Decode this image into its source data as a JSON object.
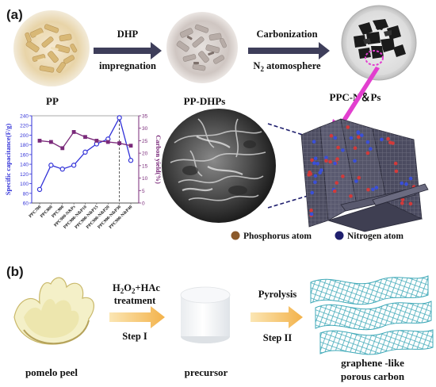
{
  "panel_a": {
    "label": "(a)",
    "step1": {
      "top": "DHP",
      "bottom": "impregnation"
    },
    "step2": {
      "top": "Carbonization",
      "bottom_prefix": "N",
      "bottom_sub": "2",
      "bottom_suffix": " atomosphere"
    },
    "img_labels": [
      "PP",
      "PP-DHPs",
      "PPC-N＆Ps"
    ],
    "legend": [
      {
        "label": "Phosphorus atom",
        "color": "#8b5a2b"
      },
      {
        "label": "Nitrogen atom",
        "color": "#1f1f6e"
      }
    ]
  },
  "chart_data": {
    "type": "line",
    "categories": [
      "PPC700",
      "PPC800",
      "PPC900",
      "PPC900-N&Ps",
      "PPC900-N&P10",
      "PPC900-N&P15",
      "PPC900-N&P20",
      "PPC900-N&P30",
      "PPC900-N&P40"
    ],
    "series": [
      {
        "name": "Specific capacitance(F/g)",
        "color": "#3232d8",
        "axis": "left",
        "values": [
          88,
          138,
          130,
          138,
          165,
          182,
          192,
          236,
          148
        ]
      },
      {
        "name": "Carbon yield(%)",
        "color": "#7a2a7a",
        "axis": "right",
        "values": [
          25,
          24.5,
          22,
          28.5,
          26.5,
          25,
          24.5,
          24,
          23
        ]
      }
    ],
    "ylabel": "Specific capacitance(F/g)",
    "y2label": "Carbon yield(%)",
    "ylim": [
      60,
      240
    ],
    "y2lim": [
      0,
      35
    ],
    "yticks": [
      "60",
      "80",
      "100",
      "120",
      "140",
      "160",
      "180",
      "200",
      "220",
      "240"
    ],
    "y2ticks": [
      "0",
      "5",
      "10",
      "15",
      "20",
      "25",
      "30",
      "35"
    ],
    "marker_index": 7
  },
  "panel_b": {
    "label": "(b)",
    "step1": {
      "top_prefix": "H",
      "sub1": "2",
      "mid": "O",
      "sub2": "2",
      "top_suffix": "+HAc",
      "line2": "treatment",
      "step": "Step I"
    },
    "step2": {
      "top": "Pyrolysis",
      "step": "Step II"
    },
    "img_labels": [
      "pomelo peel",
      "precursor",
      "graphene -like",
      "porous  carbon"
    ]
  },
  "colors": {
    "arrow_a": "#3e3e5a",
    "arrow_b": "#f2c060",
    "pink": "#e23fcf"
  }
}
